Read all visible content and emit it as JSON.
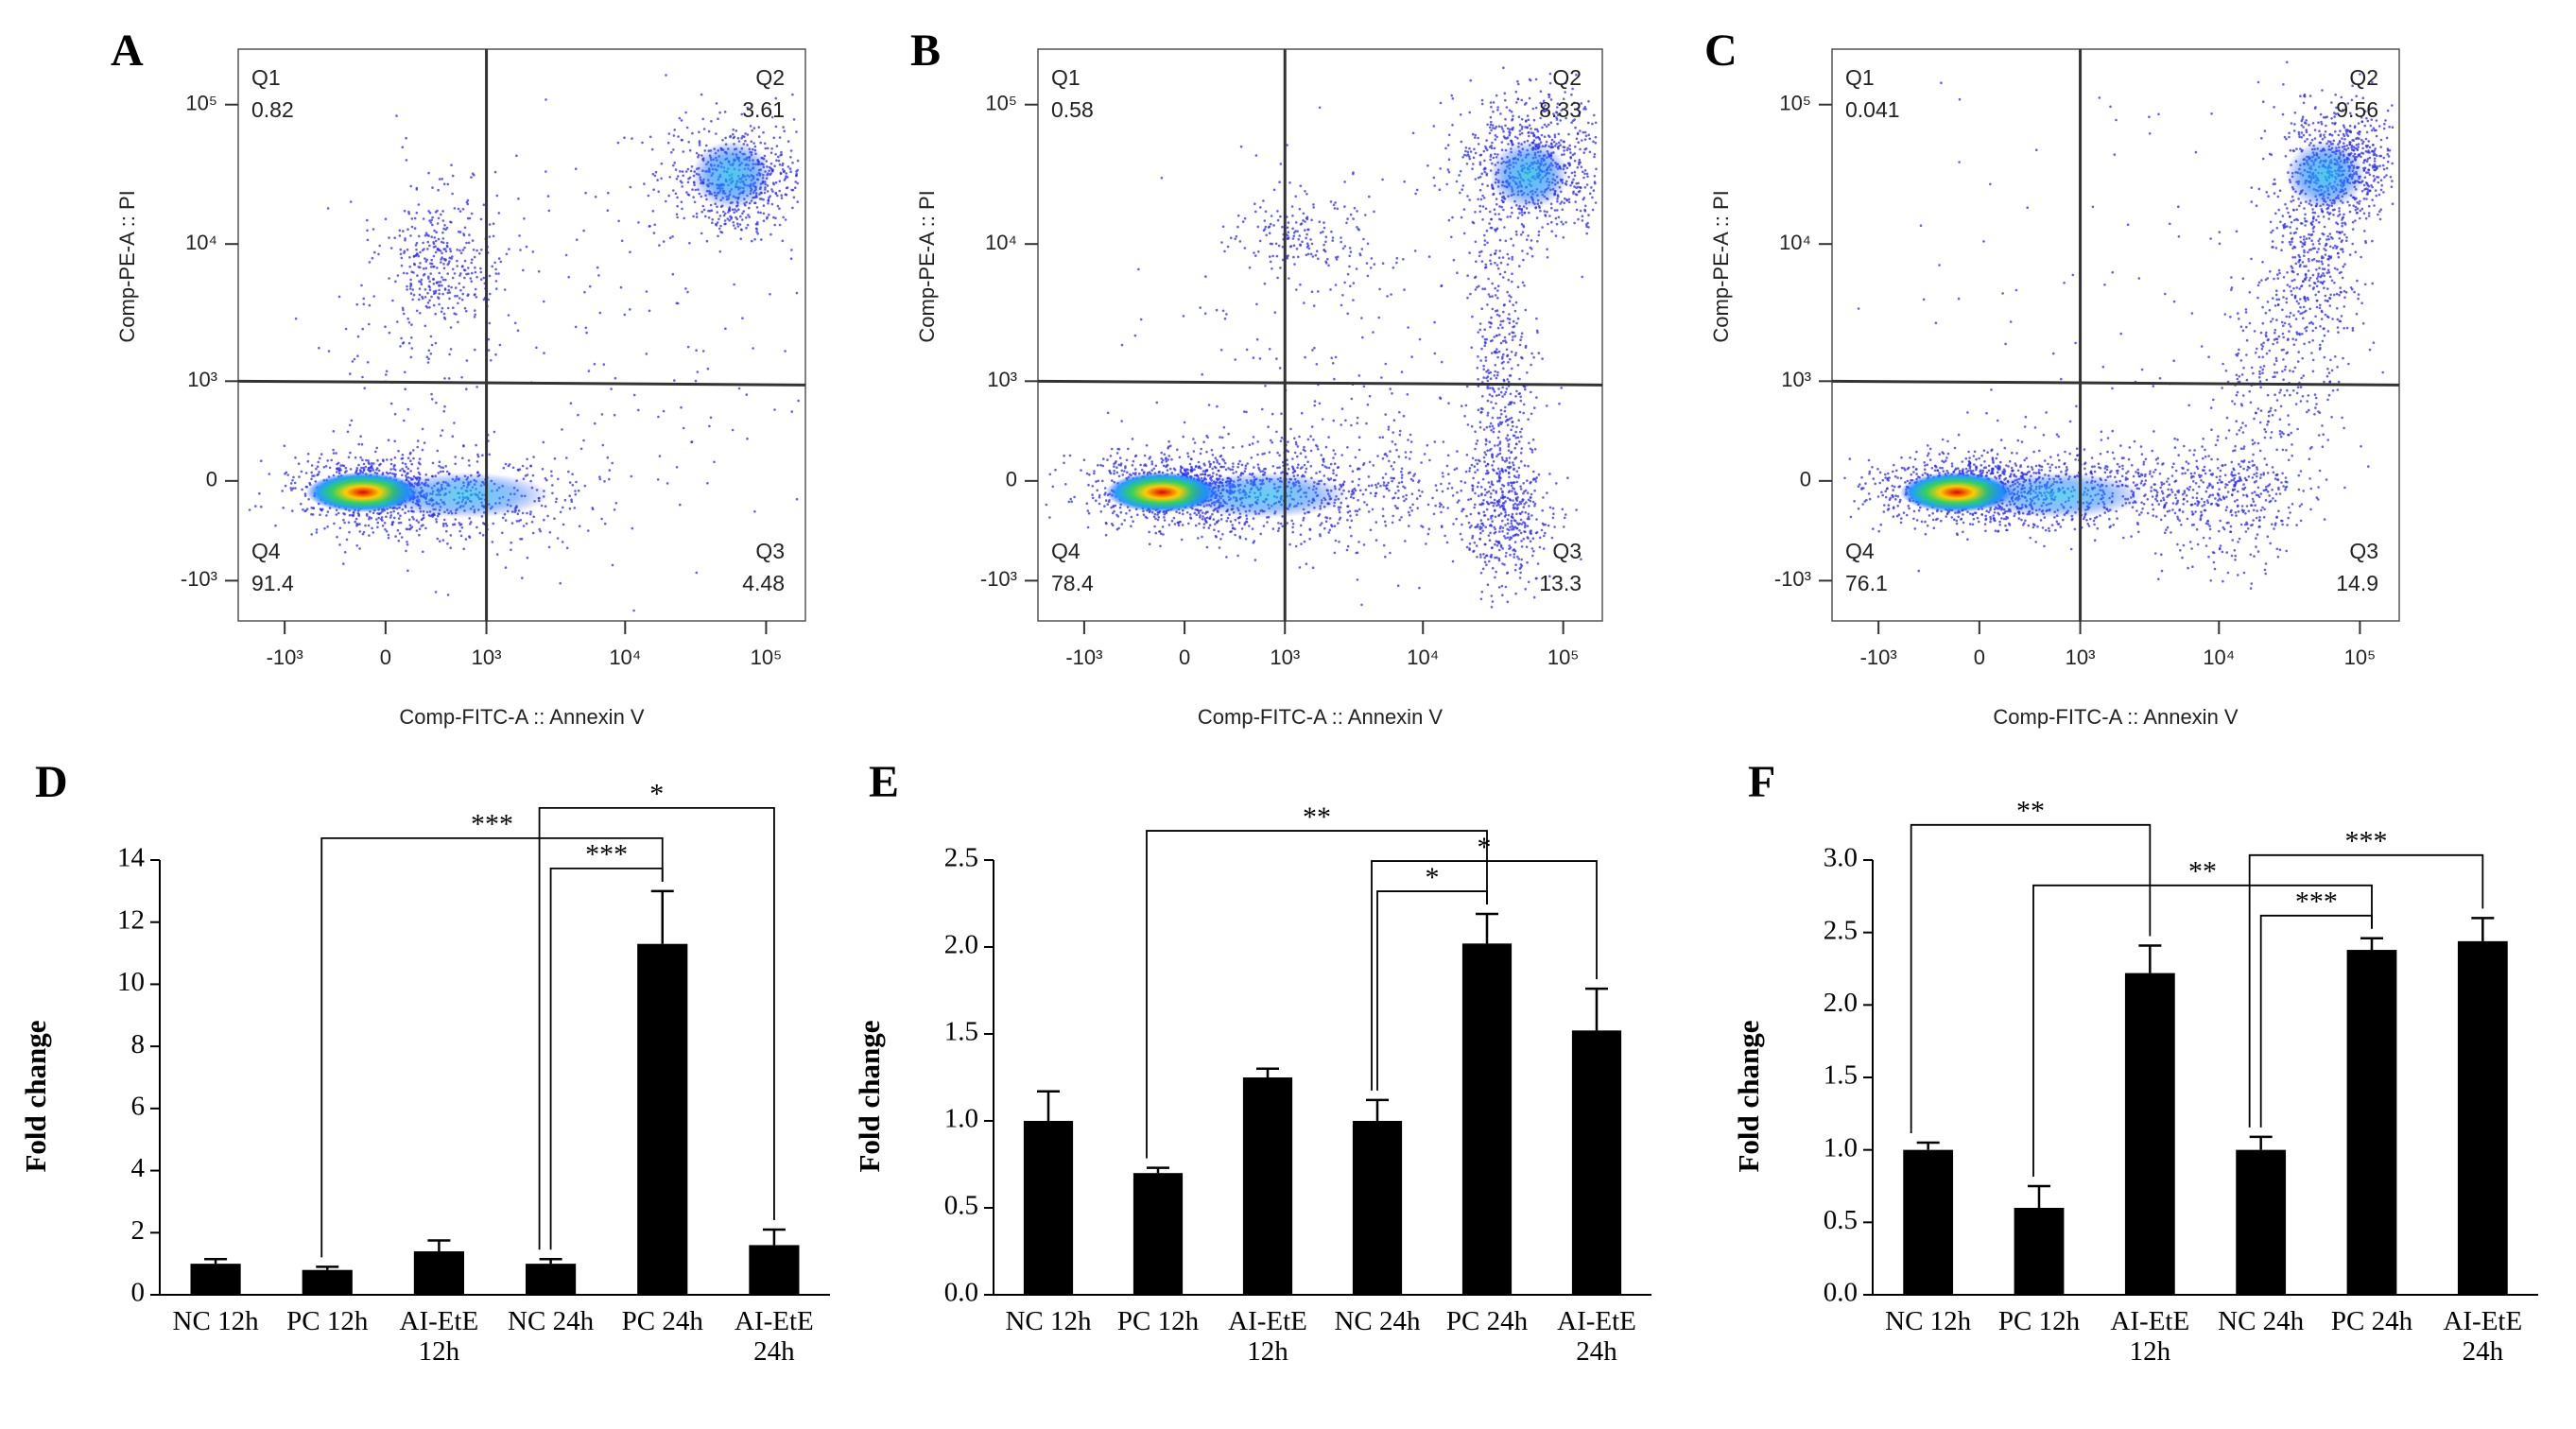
{
  "chart_data": [
    {
      "type": "flow",
      "panel": "A",
      "xlabel": "Comp-FITC-A :: Annexin V",
      "ylabel": "Comp-PE-A :: PI",
      "xlim": [
        -2200,
        190000
      ],
      "ylim": [
        -2000,
        250000
      ],
      "xticks": [
        {
          "value": -1000,
          "label": "-10³"
        },
        0,
        {
          "value": 1000,
          "label": "10³"
        },
        {
          "value": 10000,
          "label": "10⁴"
        },
        {
          "value": 100000,
          "label": "10⁵"
        }
      ],
      "yticks": [
        {
          "value": -1000,
          "label": "-10³"
        },
        0,
        {
          "value": 1000,
          "label": "10³"
        },
        {
          "value": 10000,
          "label": "10⁴"
        },
        {
          "value": 100000,
          "label": "10⁵"
        }
      ],
      "quadrants": {
        "names": [
          "Q1",
          "Q2",
          "Q3",
          "Q4"
        ],
        "values": [
          0.82,
          3.61,
          4.48,
          91.4
        ]
      }
    },
    {
      "type": "flow",
      "panel": "B",
      "xlabel": "Comp-FITC-A :: Annexin V",
      "ylabel": "Comp-PE-A :: PI",
      "xlim": [
        -2200,
        190000
      ],
      "ylim": [
        -2000,
        250000
      ],
      "xticks": [
        {
          "value": -1000,
          "label": "-10³"
        },
        0,
        {
          "value": 1000,
          "label": "10³"
        },
        {
          "value": 10000,
          "label": "10⁴"
        },
        {
          "value": 100000,
          "label": "10⁵"
        }
      ],
      "yticks": [
        {
          "value": -1000,
          "label": "-10³"
        },
        0,
        {
          "value": 1000,
          "label": "10³"
        },
        {
          "value": 10000,
          "label": "10⁴"
        },
        {
          "value": 100000,
          "label": "10⁵"
        }
      ],
      "quadrants": {
        "names": [
          "Q1",
          "Q2",
          "Q3",
          "Q4"
        ],
        "values": [
          0.58,
          8.33,
          13.3,
          78.4
        ]
      }
    },
    {
      "type": "flow",
      "panel": "C",
      "xlabel": "Comp-FITC-A :: Annexin V",
      "ylabel": "Comp-PE-A :: PI",
      "xlim": [
        -2200,
        190000
      ],
      "ylim": [
        -2000,
        250000
      ],
      "xticks": [
        {
          "value": -1000,
          "label": "-10³"
        },
        0,
        {
          "value": 1000,
          "label": "10³"
        },
        {
          "value": 10000,
          "label": "10⁴"
        },
        {
          "value": 100000,
          "label": "10⁵"
        }
      ],
      "yticks": [
        {
          "value": -1000,
          "label": "-10³"
        },
        0,
        {
          "value": 1000,
          "label": "10³"
        },
        {
          "value": 10000,
          "label": "10⁴"
        },
        {
          "value": 100000,
          "label": "10⁵"
        }
      ],
      "quadrants": {
        "names": [
          "Q1",
          "Q2",
          "Q3",
          "Q4"
        ],
        "values": [
          0.041,
          9.56,
          14.9,
          76.1
        ]
      }
    },
    {
      "type": "bar",
      "panel": "D",
      "ylabel": "Fold change",
      "color": "#000000",
      "categories": [
        "NC 12h",
        "PC 12h",
        "AI-EtE 12h",
        "NC 24h",
        "PC 24h",
        "AI-EtE 24h"
      ],
      "values": [
        1.0,
        0.8,
        1.4,
        1.0,
        11.3,
        1.6
      ],
      "errors": [
        0.15,
        0.1,
        0.35,
        0.15,
        1.7,
        0.5
      ],
      "ylim": [
        0,
        14
      ],
      "yticks": [
        0,
        2,
        4,
        6,
        8,
        10,
        12,
        14
      ],
      "annotations": [
        {
          "text": "***",
          "from": "NC 24h",
          "to": "PC 24h"
        },
        {
          "text": "***",
          "from": "PC 12h",
          "to": "PC 24h"
        },
        {
          "text": "*",
          "from": "NC 24h",
          "to": "AI-EtE 24h"
        }
      ]
    },
    {
      "type": "bar",
      "panel": "E",
      "ylabel": "Fold change",
      "color": "#000000",
      "categories": [
        "NC 12h",
        "PC 12h",
        "AI-EtE 12h",
        "NC 24h",
        "PC 24h",
        "AI-EtE 24h"
      ],
      "values": [
        1.0,
        0.7,
        1.25,
        1.0,
        2.02,
        1.52
      ],
      "errors": [
        0.17,
        0.03,
        0.05,
        0.12,
        0.17,
        0.24
      ],
      "ylim": [
        0,
        2.5
      ],
      "yticks": [
        {
          "value": 0,
          "label": "0.0"
        },
        0.5,
        {
          "value": 1,
          "label": "1.0"
        },
        1.5,
        {
          "value": 2,
          "label": "2.0"
        },
        2.5
      ],
      "annotations": [
        {
          "text": "*",
          "from": "NC 24h",
          "to": "PC 24h"
        },
        {
          "text": "*",
          "from": "NC 24h",
          "to": "AI-EtE 24h"
        },
        {
          "text": "**",
          "from": "PC 12h",
          "to": "PC 24h"
        }
      ]
    },
    {
      "type": "bar",
      "panel": "F",
      "ylabel": "Fold change",
      "color": "#000000",
      "categories": [
        "NC 12h",
        "PC 12h",
        "AI-EtE 12h",
        "NC 24h",
        "PC 24h",
        "AI-EtE 24h"
      ],
      "values": [
        1.0,
        0.6,
        2.22,
        1.0,
        2.38,
        2.44
      ],
      "errors": [
        0.05,
        0.15,
        0.19,
        0.09,
        0.08,
        0.16
      ],
      "ylim": [
        0,
        3
      ],
      "yticks": [
        {
          "value": 0,
          "label": "0.0"
        },
        0.5,
        {
          "value": 1,
          "label": "1.0"
        },
        1.5,
        {
          "value": 2,
          "label": "2.0"
        },
        2.5,
        {
          "value": 3,
          "label": "3.0"
        }
      ],
      "annotations": [
        {
          "text": "***",
          "from": "NC 24h",
          "to": "PC 24h"
        },
        {
          "text": "**",
          "from": "PC 12h",
          "to": "PC 24h"
        },
        {
          "text": "***",
          "from": "NC 24h",
          "to": "AI-EtE 24h"
        },
        {
          "text": "**",
          "from": "NC 12h",
          "to": "AI-EtE 12h"
        }
      ]
    }
  ]
}
